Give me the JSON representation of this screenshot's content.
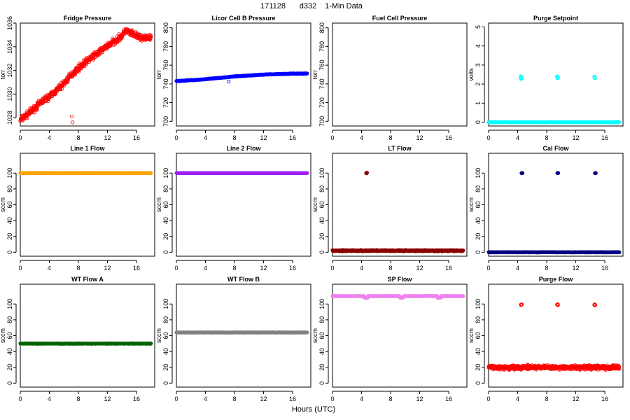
{
  "figure": {
    "title_parts": [
      "171128",
      "d332",
      "1-Min Data"
    ],
    "xlabel": "Hours (UTC)"
  },
  "chart_data": [
    {
      "type": "scatter",
      "title": "Fridge Pressure",
      "ylabel": "torr",
      "color": "#ff0000",
      "filled": false,
      "xlim": [
        0,
        18.5
      ],
      "xticks": [
        0,
        4,
        8,
        12,
        16
      ],
      "ylim": [
        1027.3,
        1036
      ],
      "yticks": [
        1028,
        1030,
        1032,
        1034,
        1036
      ],
      "series": [
        {
          "x": [
            0,
            1,
            2,
            3,
            4,
            5,
            6,
            7,
            8,
            9,
            10,
            11,
            12,
            13,
            14,
            14.5,
            15,
            16,
            17,
            18
          ],
          "y": [
            1027.8,
            1028.3,
            1028.8,
            1029.4,
            1029.8,
            1030.3,
            1030.9,
            1031.6,
            1032.2,
            1032.7,
            1033.2,
            1033.6,
            1034.1,
            1034.5,
            1034.9,
            1035.4,
            1035.2,
            1034.9,
            1034.7,
            1034.8
          ],
          "noise": 0.4,
          "count": 650,
          "outliers": [
            [
              7.1,
              1028.1
            ],
            [
              7.2,
              1027.6
            ]
          ]
        }
      ]
    },
    {
      "type": "scatter",
      "title": "Licor Cell B Pressure",
      "ylabel": "torr",
      "color": "#0000ff",
      "filled": false,
      "xlim": [
        0,
        18.5
      ],
      "xticks": [
        0,
        4,
        8,
        12,
        16
      ],
      "ylim": [
        695,
        805
      ],
      "yticks": [
        700,
        720,
        740,
        760,
        780,
        800
      ],
      "series": [
        {
          "x": [
            0,
            4,
            8,
            12,
            16,
            18
          ],
          "y": [
            743,
            745,
            748,
            750,
            751,
            751
          ],
          "noise": 0.5,
          "count": 500,
          "outliers": [
            [
              7.2,
              742.5
            ]
          ]
        }
      ]
    },
    {
      "type": "scatter",
      "title": "Fuel Cell Pressure",
      "ylabel": "torr",
      "color": "#000000",
      "filled": false,
      "xlim": [
        0,
        18.5
      ],
      "xticks": [
        0,
        4,
        8,
        12,
        16
      ],
      "ylim": [
        695,
        805
      ],
      "yticks": [
        700,
        720,
        740,
        760,
        780,
        800
      ],
      "series": []
    },
    {
      "type": "scatter",
      "title": "Purge Setpoint",
      "ylabel": "volts",
      "color": "#00ffff",
      "filled": false,
      "xlim": [
        0,
        18.5
      ],
      "xticks": [
        0,
        4,
        8,
        12,
        16
      ],
      "ylim": [
        -0.2,
        5.2
      ],
      "yticks": [
        0,
        1,
        2,
        3,
        4,
        5
      ],
      "series": [
        {
          "x": [
            0,
            18
          ],
          "y": [
            0,
            0
          ],
          "noise": 0.01,
          "count": 500,
          "clusters": [
            {
              "x": 4.5,
              "y": 2.35
            },
            {
              "x": 9.5,
              "y": 2.35
            },
            {
              "x": 14.6,
              "y": 2.35
            }
          ],
          "cluster_spread": 0.1
        }
      ]
    },
    {
      "type": "scatter",
      "title": "Line 1 Flow",
      "ylabel": "sccm",
      "color": "#ffa500",
      "filled": true,
      "xlim": [
        0,
        18.5
      ],
      "xticks": [
        0,
        4,
        8,
        12,
        16
      ],
      "ylim": [
        -5,
        125
      ],
      "yticks": [
        0,
        20,
        40,
        60,
        80,
        100
      ],
      "series": [
        {
          "x": [
            0,
            18
          ],
          "y": [
            100,
            100
          ],
          "noise": 0.3,
          "count": 500
        }
      ]
    },
    {
      "type": "scatter",
      "title": "Line 2 Flow",
      "ylabel": "sccm",
      "color": "#a020f0",
      "filled": true,
      "xlim": [
        0,
        18.5
      ],
      "xticks": [
        0,
        4,
        8,
        12,
        16
      ],
      "ylim": [
        -5,
        125
      ],
      "yticks": [
        0,
        20,
        40,
        60,
        80,
        100
      ],
      "series": [
        {
          "x": [
            0,
            18
          ],
          "y": [
            100,
            100
          ],
          "noise": 0.3,
          "count": 500
        }
      ]
    },
    {
      "type": "scatter",
      "title": "LT Flow",
      "ylabel": "sccm",
      "color": "#8b0000",
      "filled": true,
      "xlim": [
        0,
        18.5
      ],
      "xticks": [
        0,
        4,
        8,
        12,
        16
      ],
      "ylim": [
        -5,
        125
      ],
      "yticks": [
        0,
        20,
        40,
        60,
        80,
        100
      ],
      "series": [
        {
          "x": [
            0,
            18
          ],
          "y": [
            2,
            2
          ],
          "noise": 1.2,
          "count": 600,
          "clusters": [
            {
              "x": 4.7,
              "y": 100
            }
          ],
          "cluster_spread": 1.2
        }
      ]
    },
    {
      "type": "scatter",
      "title": "Cal Flow",
      "ylabel": "sccm",
      "color": "#000080",
      "filled": true,
      "xlim": [
        0,
        18.5
      ],
      "xticks": [
        0,
        4,
        8,
        12,
        16
      ],
      "ylim": [
        -5,
        125
      ],
      "yticks": [
        0,
        20,
        40,
        60,
        80,
        100
      ],
      "series": [
        {
          "x": [
            0,
            18
          ],
          "y": [
            0,
            0
          ],
          "noise": 0.3,
          "count": 500,
          "clusters": [
            {
              "x": 4.6,
              "y": 100
            },
            {
              "x": 9.5,
              "y": 100
            },
            {
              "x": 14.7,
              "y": 100
            }
          ],
          "cluster_spread": 0.3
        }
      ]
    },
    {
      "type": "scatter",
      "title": "WT Flow A",
      "ylabel": "sccm",
      "color": "#006400",
      "filled": true,
      "xlim": [
        0,
        18.5
      ],
      "xticks": [
        0,
        4,
        8,
        12,
        16
      ],
      "ylim": [
        -5,
        125
      ],
      "yticks": [
        0,
        20,
        40,
        60,
        80,
        100
      ],
      "series": [
        {
          "x": [
            0,
            18
          ],
          "y": [
            50,
            50
          ],
          "noise": 0.5,
          "count": 500
        }
      ]
    },
    {
      "type": "scatter",
      "title": "WT Flow B",
      "ylabel": "sccm",
      "color": "#808080",
      "filled": true,
      "xlim": [
        0,
        18.5
      ],
      "xticks": [
        0,
        4,
        8,
        12,
        16
      ],
      "ylim": [
        -5,
        125
      ],
      "yticks": [
        0,
        20,
        40,
        60,
        80,
        100
      ],
      "series": [
        {
          "x": [
            0,
            18
          ],
          "y": [
            64,
            64
          ],
          "noise": 0.2,
          "count": 500
        }
      ]
    },
    {
      "type": "scatter",
      "title": "SP Flow",
      "ylabel": "sccm",
      "color": "#ee82ee",
      "filled": true,
      "xlim": [
        0,
        18.5
      ],
      "xticks": [
        0,
        4,
        8,
        12,
        16
      ],
      "ylim": [
        -5,
        125
      ],
      "yticks": [
        0,
        20,
        40,
        60,
        80,
        100
      ],
      "series": [
        {
          "x": [
            0,
            18
          ],
          "y": [
            110,
            110
          ],
          "noise": 0.4,
          "count": 500,
          "dips": [
            {
              "x": 4.6,
              "y": 108
            },
            {
              "x": 9.5,
              "y": 108
            },
            {
              "x": 14.7,
              "y": 108
            }
          ]
        }
      ]
    },
    {
      "type": "scatter",
      "title": "Purge Flow",
      "ylabel": "sccm",
      "color": "#ff0000",
      "filled": false,
      "xlim": [
        0,
        18.5
      ],
      "xticks": [
        0,
        4,
        8,
        12,
        16
      ],
      "ylim": [
        -5,
        125
      ],
      "yticks": [
        0,
        20,
        40,
        60,
        80,
        100
      ],
      "series": [
        {
          "x": [
            0,
            18
          ],
          "y": [
            20,
            20
          ],
          "noise": 4,
          "count": 700,
          "clusters": [
            {
              "x": 4.5,
              "y": 99
            },
            {
              "x": 9.5,
              "y": 99
            },
            {
              "x": 14.6,
              "y": 99
            }
          ],
          "cluster_spread": 1.2
        }
      ]
    }
  ]
}
